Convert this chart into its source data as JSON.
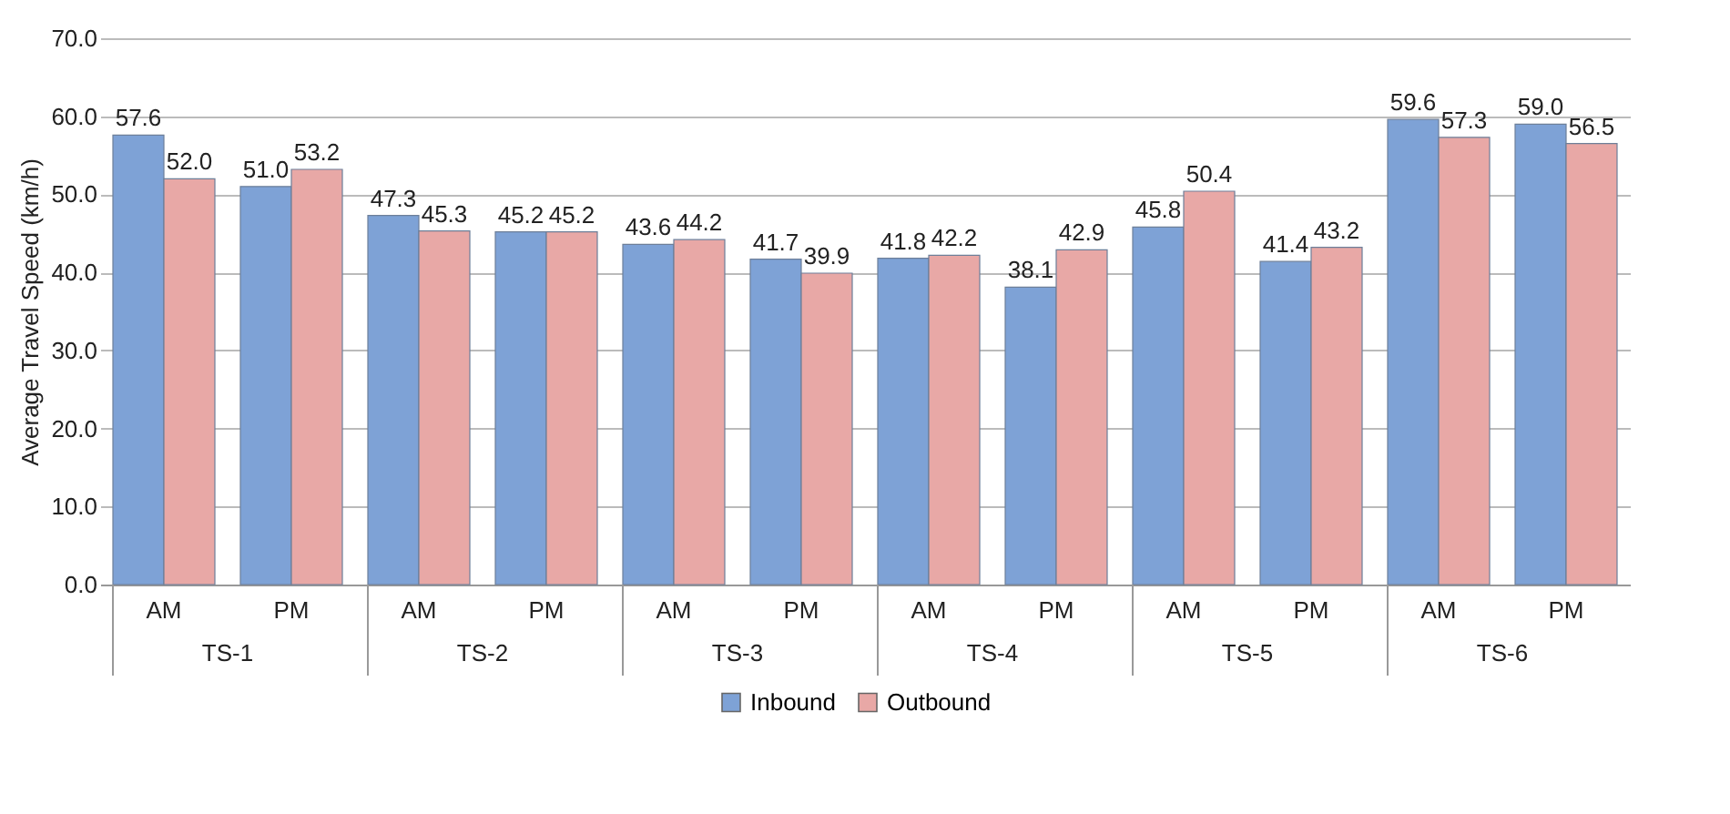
{
  "chart_data": {
    "type": "bar",
    "ylabel": "Average Travel Speed (km/h)",
    "categories": [
      "AM",
      "PM",
      "AM",
      "PM",
      "AM",
      "PM",
      "AM",
      "PM",
      "AM",
      "PM",
      "AM",
      "PM"
    ],
    "annotations": [
      "TS-1",
      "TS-2",
      "TS-3",
      "TS-4",
      "TS-5",
      "TS-6"
    ],
    "series": [
      {
        "name": "Inbound",
        "color": "#7ea2d6",
        "values": [
          57.6,
          51.0,
          47.3,
          45.2,
          43.6,
          41.7,
          41.8,
          38.1,
          45.8,
          41.4,
          59.6,
          59.0
        ],
        "value_labels": [
          "57.6",
          "51.0",
          "47.3",
          "45.2",
          "43.6",
          "41.7",
          "41.8",
          "38.1",
          "45.8",
          "41.4",
          "59.6",
          "59.0"
        ]
      },
      {
        "name": "Outbound",
        "color": "#e8a8a6",
        "values": [
          52.0,
          53.2,
          45.3,
          45.2,
          44.2,
          39.9,
          42.2,
          42.9,
          50.4,
          43.2,
          57.3,
          56.5
        ],
        "value_labels": [
          "52.0",
          "53.2",
          "45.3",
          "45.2",
          "44.2",
          "39.9",
          "42.2",
          "42.9",
          "50.4",
          "43.2",
          "57.3",
          "56.5"
        ]
      }
    ],
    "ylim": [
      0,
      70
    ],
    "yticks": [
      {
        "value": 0,
        "label": "0.0"
      },
      {
        "value": 10,
        "label": "10.0"
      },
      {
        "value": 20,
        "label": "20.0"
      },
      {
        "value": 30,
        "label": "30.0"
      },
      {
        "value": 40,
        "label": "40.0"
      },
      {
        "value": 50,
        "label": "50.0"
      },
      {
        "value": 60,
        "label": "60.0"
      },
      {
        "value": 70,
        "label": "70.0"
      }
    ],
    "grid": "y",
    "legend": "bottom"
  }
}
